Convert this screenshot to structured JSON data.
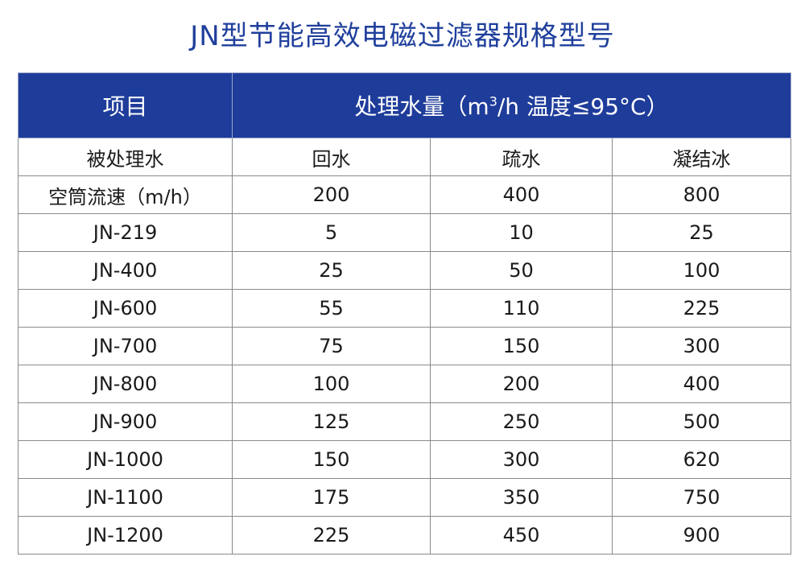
{
  "title": "JN型节能高效电磁过滤器规格型号",
  "header": {
    "item_label": "项目",
    "flow_label_pre": "处理水量（m",
    "flow_label_sup": "3",
    "flow_label_post": "/h  温度≤95°C）"
  },
  "subheader": {
    "col0": "被处理水",
    "col1": "回水",
    "col2": "疏水",
    "col3": "凝结冰"
  },
  "rows": [
    [
      "空筒流速（m/h）",
      "200",
      "400",
      "800"
    ],
    [
      "JN-219",
      "5",
      "10",
      "25"
    ],
    [
      "JN-400",
      "25",
      "50",
      "100"
    ],
    [
      "JN-600",
      "55",
      "110",
      "225"
    ],
    [
      "JN-700",
      "75",
      "150",
      "300"
    ],
    [
      "JN-800",
      "100",
      "200",
      "400"
    ],
    [
      "JN-900",
      "125",
      "250",
      "500"
    ],
    [
      "JN-1000",
      "150",
      "300",
      "620"
    ],
    [
      "JN-1100",
      "175",
      "350",
      "750"
    ],
    [
      "JN-1200",
      "225",
      "450",
      "900"
    ]
  ],
  "colors": {
    "header_bg": "#1e3c9a",
    "title_color": "#1f3f9c",
    "border": "#8a8a8a"
  }
}
